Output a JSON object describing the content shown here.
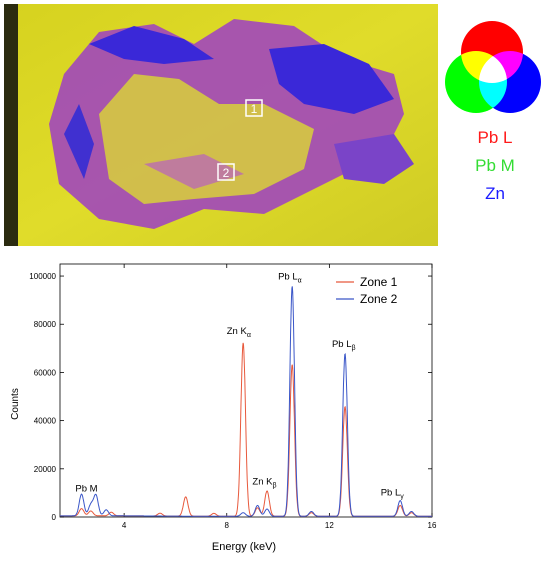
{
  "map": {
    "zones": [
      {
        "label": "1"
      },
      {
        "label": "2"
      }
    ]
  },
  "color_legend": {
    "labels": [
      {
        "text": "Pb L",
        "color": "#ff1a1a"
      },
      {
        "text": "Pb M",
        "color": "#33dd33"
      },
      {
        "text": "Zn",
        "color": "#1a1aff"
      }
    ],
    "circle_colors": {
      "red": "#ff0000",
      "green": "#00ff00",
      "blue": "#0000ff"
    }
  },
  "chart_data": {
    "type": "line",
    "xlabel": "Energy (keV)",
    "ylabel": "Counts",
    "xlim": [
      1.5,
      16
    ],
    "ylim": [
      0,
      105000
    ],
    "xticks": [
      4,
      8,
      12,
      16
    ],
    "yticks": [
      0,
      20000,
      40000,
      60000,
      80000,
      100000
    ],
    "ytick_labels": [
      "0",
      "20000",
      "40000",
      "60000",
      "80000",
      "100000"
    ],
    "xtick_labels": [
      "4",
      "8",
      "12",
      "16"
    ],
    "legend_position": "top-right",
    "series": [
      {
        "name": "Zone 1",
        "color": "#e8593c",
        "peaks": [
          {
            "x": 2.34,
            "y": 3000
          },
          {
            "x": 2.7,
            "y": 2000
          },
          {
            "x": 3.5,
            "y": 1500
          },
          {
            "x": 5.4,
            "y": 1200
          },
          {
            "x": 6.4,
            "y": 8000
          },
          {
            "x": 7.5,
            "y": 1200
          },
          {
            "x": 8.64,
            "y": 72000
          },
          {
            "x": 9.2,
            "y": 3500
          },
          {
            "x": 9.57,
            "y": 10500
          },
          {
            "x": 10.55,
            "y": 63000
          },
          {
            "x": 11.3,
            "y": 1500
          },
          {
            "x": 12.61,
            "y": 45500
          },
          {
            "x": 14.76,
            "y": 4500
          },
          {
            "x": 15.2,
            "y": 1500
          }
        ]
      },
      {
        "name": "Zone 2",
        "color": "#3a56c8",
        "peaks": [
          {
            "x": 2.34,
            "y": 9000
          },
          {
            "x": 2.7,
            "y": 4500
          },
          {
            "x": 2.9,
            "y": 8500
          },
          {
            "x": 3.3,
            "y": 2500
          },
          {
            "x": 8.64,
            "y": 1500
          },
          {
            "x": 9.2,
            "y": 4500
          },
          {
            "x": 9.57,
            "y": 3000
          },
          {
            "x": 10.55,
            "y": 95500
          },
          {
            "x": 11.3,
            "y": 2000
          },
          {
            "x": 12.61,
            "y": 67500
          },
          {
            "x": 14.76,
            "y": 6500
          },
          {
            "x": 15.2,
            "y": 2000
          }
        ]
      }
    ],
    "annotations": [
      {
        "base": "Pb M",
        "sub": "",
        "x": 2.1,
        "y": 10500
      },
      {
        "base": "Zn K",
        "sub": "α",
        "x": 8.0,
        "y": 76000
      },
      {
        "base": "Zn K",
        "sub": "β",
        "x": 9.0,
        "y": 13500
      },
      {
        "base": "Pb L",
        "sub": "α",
        "x": 10.0,
        "y": 98500
      },
      {
        "base": "Pb L",
        "sub": "β",
        "x": 12.1,
        "y": 70500
      },
      {
        "base": "Pb L",
        "sub": "γ",
        "x": 14.0,
        "y": 9000
      }
    ]
  }
}
